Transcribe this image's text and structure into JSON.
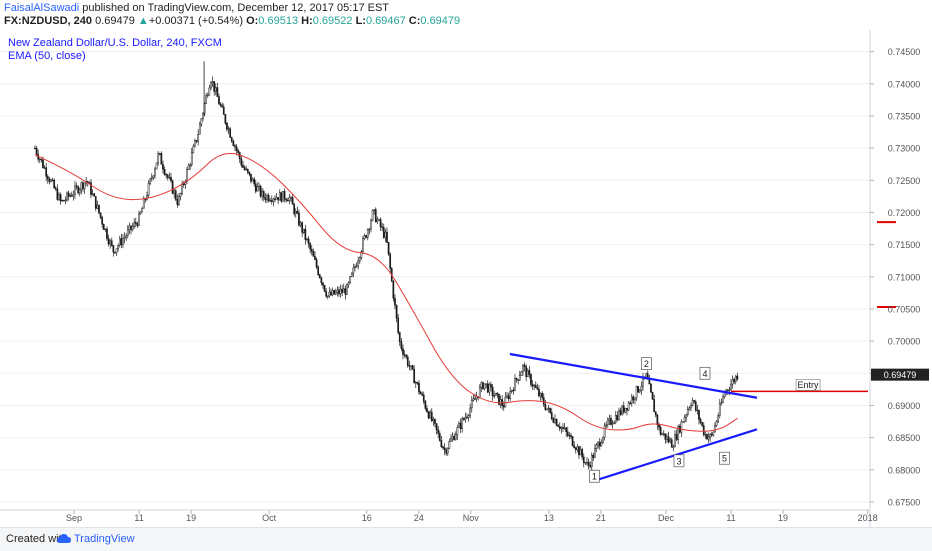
{
  "header": {
    "author": "FaisalAlSawadi",
    "published": " published on TradingView.com, December 12, 2017 05:17 EST",
    "symbol": "FX:NZDUSD, 240",
    "last": "0.69479",
    "change": "+0.00371 (+0.54%)",
    "o_label": "O:",
    "o": "0.69513",
    "h_label": "H:",
    "h": "0.69522",
    "l_label": "L:",
    "l": "0.69467",
    "c_label": "C:",
    "c": "0.69479"
  },
  "footer": {
    "created_with": "Created with",
    "brand": "TradingView"
  },
  "colors": {
    "candles": "#1a1a1a",
    "ema": "#e53935",
    "trendline": "#1a1aff",
    "levels": "#e00000",
    "axis_text": "#555555",
    "grid": "#f0f0f0"
  },
  "chart_data": {
    "type": "candlestick",
    "title": "New Zealand Dollar/U.S. Dollar, 240, FXCM",
    "indicator": "EMA (50, close)",
    "ylim": [
      0.67453,
      0.74603
    ],
    "yticks": [
      "0.74500",
      "0.74000",
      "0.73500",
      "0.73000",
      "0.72500",
      "0.72000",
      "0.71500",
      "0.71000",
      "0.70500",
      "0.70000",
      "0.69500",
      "0.69000",
      "0.68500",
      "0.68000",
      "0.67500"
    ],
    "xticks": [
      "Sep",
      "11",
      "19",
      "Oct",
      "16",
      "24",
      "Nov",
      "13",
      "21",
      "Dec",
      "11",
      "19",
      "2018"
    ],
    "price_path": [
      {
        "date": "2017-08-26",
        "price": 0.73
      },
      {
        "date": "2017-08-30",
        "price": 0.7215
      },
      {
        "date": "2017-09-03",
        "price": 0.725
      },
      {
        "date": "2017-09-07",
        "price": 0.714
      },
      {
        "date": "2017-09-11",
        "price": 0.719
      },
      {
        "date": "2017-09-14",
        "price": 0.729
      },
      {
        "date": "2017-09-17",
        "price": 0.7215
      },
      {
        "date": "2017-09-20",
        "price": 0.732
      },
      {
        "date": "2017-09-22",
        "price": 0.741
      },
      {
        "date": "2017-09-24",
        "price": 0.735
      },
      {
        "date": "2017-09-27",
        "price": 0.727
      },
      {
        "date": "2017-09-30",
        "price": 0.7225
      },
      {
        "date": "2017-10-04",
        "price": 0.7225
      },
      {
        "date": "2017-10-07",
        "price": 0.715
      },
      {
        "date": "2017-10-10",
        "price": 0.707
      },
      {
        "date": "2017-10-13",
        "price": 0.708
      },
      {
        "date": "2017-10-17",
        "price": 0.72
      },
      {
        "date": "2017-10-19",
        "price": 0.716
      },
      {
        "date": "2017-10-21",
        "price": 0.7
      },
      {
        "date": "2017-10-25",
        "price": 0.69
      },
      {
        "date": "2017-10-28",
        "price": 0.683
      },
      {
        "date": "2017-10-31",
        "price": 0.688
      },
      {
        "date": "2017-11-03",
        "price": 0.6935
      },
      {
        "date": "2017-11-06",
        "price": 0.69
      },
      {
        "date": "2017-11-09",
        "price": 0.696
      },
      {
        "date": "2017-11-13",
        "price": 0.689
      },
      {
        "date": "2017-11-17",
        "price": 0.684
      },
      {
        "date": "2017-11-19",
        "price": 0.6805
      },
      {
        "date": "2017-11-22",
        "price": 0.687
      },
      {
        "date": "2017-11-25",
        "price": 0.69
      },
      {
        "date": "2017-11-28",
        "price": 0.6945
      },
      {
        "date": "2017-11-30",
        "price": 0.686
      },
      {
        "date": "2017-12-02",
        "price": 0.684
      },
      {
        "date": "2017-12-05",
        "price": 0.691
      },
      {
        "date": "2017-12-07",
        "price": 0.6855
      },
      {
        "date": "2017-12-08",
        "price": 0.685
      },
      {
        "date": "2017-12-10",
        "price": 0.692
      },
      {
        "date": "2017-12-12",
        "price": 0.69479
      }
    ],
    "ema_path": [
      {
        "date": "2017-08-26",
        "price": 0.729
      },
      {
        "date": "2017-09-01",
        "price": 0.726
      },
      {
        "date": "2017-09-07",
        "price": 0.722
      },
      {
        "date": "2017-09-13",
        "price": 0.722
      },
      {
        "date": "2017-09-19",
        "price": 0.725
      },
      {
        "date": "2017-09-24",
        "price": 0.73
      },
      {
        "date": "2017-09-30",
        "price": 0.7275
      },
      {
        "date": "2017-10-06",
        "price": 0.7215
      },
      {
        "date": "2017-10-12",
        "price": 0.714
      },
      {
        "date": "2017-10-18",
        "price": 0.7135
      },
      {
        "date": "2017-10-23",
        "price": 0.705
      },
      {
        "date": "2017-10-29",
        "price": 0.694
      },
      {
        "date": "2017-11-04",
        "price": 0.69
      },
      {
        "date": "2017-11-10",
        "price": 0.691
      },
      {
        "date": "2017-11-15",
        "price": 0.69
      },
      {
        "date": "2017-11-20",
        "price": 0.6865
      },
      {
        "date": "2017-11-25",
        "price": 0.686
      },
      {
        "date": "2017-11-29",
        "price": 0.6875
      },
      {
        "date": "2017-12-04",
        "price": 0.686
      },
      {
        "date": "2017-12-09",
        "price": 0.686
      },
      {
        "date": "2017-12-12",
        "price": 0.688
      }
    ],
    "trendlines": [
      {
        "name": "upper",
        "from": {
          "date": "2017-11-07",
          "price": 0.698
        },
        "to": {
          "date": "2017-12-15",
          "price": 0.6912
        }
      },
      {
        "name": "lower",
        "from": {
          "date": "2017-11-20",
          "price": 0.6783
        },
        "to": {
          "date": "2017-12-15",
          "price": 0.6863
        }
      }
    ],
    "wave_labels": [
      {
        "text": "1",
        "date": "2017-11-20",
        "price": 0.679
      },
      {
        "text": "2",
        "date": "2017-11-28",
        "price": 0.6965
      },
      {
        "text": "3",
        "date": "2017-12-03",
        "price": 0.6814
      },
      {
        "text": "4",
        "date": "2017-12-07",
        "price": 0.695
      },
      {
        "text": "5",
        "date": "2017-12-10",
        "price": 0.6818
      }
    ],
    "entry": {
      "label": "Entry",
      "price": 0.6922
    },
    "levels": [
      0.7185,
      0.7053
    ],
    "last_price_label": "0.69479",
    "last_price": 0.69479
  }
}
